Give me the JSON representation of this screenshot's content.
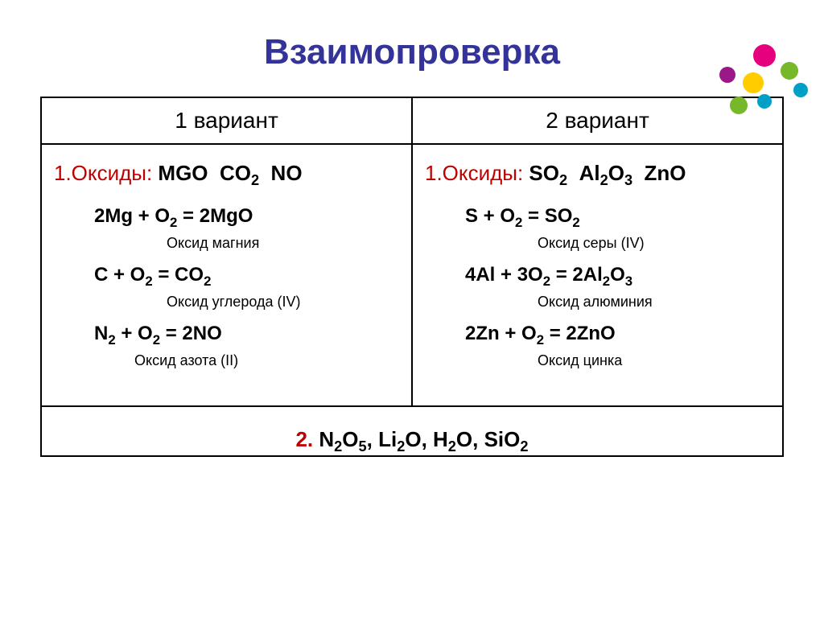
{
  "title": "Взаимопроверка",
  "title_color": "#333399",
  "accent_color": "#c00000",
  "text_color": "#000000",
  "background_color": "#ffffff",
  "border_color": "#000000",
  "font_family": "Arial",
  "title_fontsize": 44,
  "header_fontsize": 28,
  "body_fontsize": 24,
  "name_fontsize": 18,
  "columns": {
    "left": {
      "header": "1 вариант",
      "oxides_label": "1.Оксиды:",
      "oxides_formulas": "MGO  CO₂  NO",
      "reactions": [
        {
          "equation": "2Mg + O₂ = 2MgO",
          "name": "Оксид магния"
        },
        {
          "equation": "C + O₂ = CO₂",
          "name": "Оксид углерода (IV)"
        },
        {
          "equation": "N₂ + O₂ = 2NO",
          "name": "Оксид азота (II)"
        }
      ]
    },
    "right": {
      "header": "2 вариант",
      "oxides_label": "1.Оксиды:",
      "oxides_formulas": "SO₂  Al₂O₃  ZnO",
      "reactions": [
        {
          "equation": "S + O₂ = SO₂",
          "name": "Оксид серы (IV)"
        },
        {
          "equation": "4Al + 3O₂ = 2Al₂O₃",
          "name": "Оксид алюминия"
        },
        {
          "equation": "2Zn + O₂ = 2ZnO",
          "name": "Оксид цинка"
        }
      ]
    }
  },
  "bottom": {
    "number": "2.",
    "formulas": "N₂O₅, Li₂O, H₂O, SiO₂"
  },
  "decorative_dots": [
    {
      "color": "#e6007e",
      "size": 28
    },
    {
      "color": "#76b82a",
      "size": 22
    },
    {
      "color": "#00a0c6",
      "size": 18
    },
    {
      "color": "#ffcc00",
      "size": 26
    },
    {
      "color": "#9b1889",
      "size": 20
    },
    {
      "color": "#00a0c6",
      "size": 18
    },
    {
      "color": "#76b82a",
      "size": 22
    }
  ]
}
